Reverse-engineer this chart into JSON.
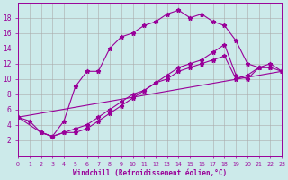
{
  "xlabel": "Windchill (Refroidissement éolien,°C)",
  "bg_color": "#cceaea",
  "line_color": "#990099",
  "grid_color": "#aaaaaa",
  "xlim": [
    0,
    23
  ],
  "ylim": [
    0,
    20
  ],
  "series1_x": [
    0,
    1,
    2,
    3,
    4,
    5,
    6,
    7,
    8,
    9,
    10,
    11,
    12,
    13,
    14,
    15,
    16,
    17,
    18,
    19,
    20,
    21,
    22
  ],
  "series1_y": [
    5.0,
    4.5,
    3.0,
    2.5,
    4.5,
    9.0,
    11.0,
    11.0,
    14.0,
    15.5,
    16.0,
    17.0,
    17.5,
    18.5,
    19.0,
    18.0,
    18.5,
    17.5,
    17.0,
    15.0,
    12.0,
    11.5,
    11.5
  ],
  "series2_x": [
    0,
    2,
    3,
    4,
    5,
    6,
    7,
    8,
    9,
    10,
    11,
    12,
    13,
    14,
    15,
    16,
    17,
    18,
    19,
    20,
    21,
    22,
    23
  ],
  "series2_y": [
    5.0,
    3.0,
    2.5,
    3.0,
    3.0,
    3.5,
    4.5,
    5.5,
    6.5,
    7.5,
    8.5,
    9.5,
    10.0,
    11.0,
    11.5,
    12.0,
    12.5,
    13.0,
    10.0,
    10.5,
    11.5,
    11.5,
    11.0
  ],
  "series3_x": [
    0,
    23
  ],
  "series3_y": [
    5.0,
    11.0
  ],
  "series4_x": [
    2,
    3,
    4,
    5,
    6,
    7,
    8,
    9,
    10,
    11,
    12,
    13,
    14,
    15,
    16,
    17,
    18,
    19,
    20,
    21,
    22,
    23
  ],
  "series4_y": [
    3.0,
    2.5,
    3.0,
    3.5,
    4.0,
    5.0,
    6.0,
    7.0,
    8.0,
    8.5,
    9.5,
    10.5,
    11.5,
    12.0,
    12.5,
    13.5,
    14.5,
    10.5,
    10.0,
    11.5,
    12.0,
    11.0
  ]
}
